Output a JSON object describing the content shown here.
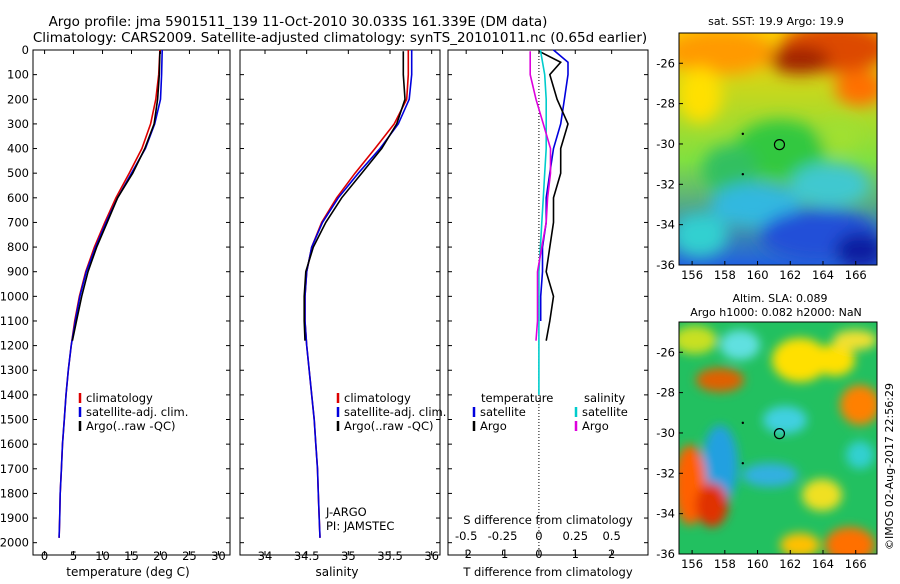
{
  "title": {
    "line1": "Argo profile: jma 5901511_139 11-Oct-2010 30.033S 161.339E (DM data)",
    "line2": "Climatology: CARS2009. Satellite-adjusted climatology: synTS_20101011.nc (0.65d earlier)"
  },
  "credit": "©IMOS 02-Aug-2017 22:56:29",
  "chart_data": [
    {
      "type": "line",
      "name": "temperature-profile",
      "xlabel": "temperature (deg C)",
      "xlim": [
        -2,
        32
      ],
      "xticks": [
        0,
        5,
        10,
        15,
        20,
        25,
        30
      ],
      "ylim": [
        0,
        2050
      ],
      "yticks": [
        0,
        100,
        200,
        300,
        400,
        500,
        600,
        700,
        800,
        900,
        1000,
        1100,
        1200,
        1300,
        1400,
        1500,
        1600,
        1700,
        1800,
        1900,
        2000
      ],
      "y_reversed": true,
      "legend": [
        "climatology",
        "satellite-adj. clim.",
        "Argo(..raw -QC)"
      ],
      "series": [
        {
          "name": "climatology",
          "color": "#dd0000",
          "x": [
            19.9,
            19.7,
            19.2,
            18.3,
            16.8,
            14.6,
            12.3,
            10.4,
            8.6,
            7.1,
            6.0,
            5.2,
            4.6,
            4.1,
            3.7,
            3.4,
            3.1,
            2.9,
            2.7,
            2.6,
            2.5
          ],
          "y": [
            0,
            100,
            200,
            300,
            400,
            500,
            600,
            700,
            800,
            900,
            1000,
            1100,
            1200,
            1300,
            1400,
            1500,
            1600,
            1700,
            1800,
            1900,
            1980
          ]
        },
        {
          "name": "satellite-adj. clim.",
          "color": "#0000dd",
          "x": [
            20.3,
            20.2,
            20.0,
            19.0,
            17.4,
            15.0,
            12.6,
            10.6,
            8.8,
            7.2,
            6.1,
            5.3,
            4.6,
            4.1,
            3.7,
            3.4,
            3.1,
            2.9,
            2.7,
            2.6,
            2.5
          ],
          "y": [
            0,
            100,
            200,
            300,
            400,
            500,
            600,
            700,
            800,
            900,
            1000,
            1100,
            1200,
            1300,
            1400,
            1500,
            1600,
            1700,
            1800,
            1900,
            1980
          ]
        },
        {
          "name": "Argo(..raw -QC)",
          "color": "#000000",
          "x": [
            19.9,
            19.8,
            19.5,
            18.9,
            17.3,
            15.2,
            12.6,
            10.8,
            9.0,
            7.5,
            6.4,
            5.5,
            4.8
          ],
          "y": [
            5,
            100,
            200,
            300,
            400,
            500,
            600,
            700,
            800,
            900,
            1000,
            1100,
            1180
          ]
        }
      ]
    },
    {
      "type": "line",
      "name": "salinity-profile",
      "xlabel": "salinity",
      "xlim": [
        33.7,
        36.1
      ],
      "xticks": [
        34,
        34.5,
        35,
        35.5,
        36
      ],
      "ylim": [
        0,
        2050
      ],
      "y_reversed": true,
      "legend": [
        "climatology",
        "satellite-adj. clim.",
        "Argo(..raw -QC)"
      ],
      "annotation": [
        "J-ARGO",
        "PI: JAMSTEC"
      ],
      "series": [
        {
          "name": "climatology",
          "color": "#dd0000",
          "x": [
            35.72,
            35.72,
            35.7,
            35.55,
            35.32,
            35.08,
            34.86,
            34.68,
            34.56,
            34.5,
            34.48,
            34.48,
            34.5,
            34.53,
            34.56,
            34.59,
            34.61,
            34.63,
            34.64,
            34.65,
            34.66
          ],
          "y": [
            0,
            100,
            200,
            300,
            400,
            500,
            600,
            700,
            800,
            900,
            1000,
            1100,
            1200,
            1300,
            1400,
            1500,
            1600,
            1700,
            1800,
            1900,
            1980
          ]
        },
        {
          "name": "satellite-adj. clim.",
          "color": "#0000dd",
          "x": [
            35.76,
            35.76,
            35.73,
            35.6,
            35.38,
            35.12,
            34.88,
            34.69,
            34.56,
            34.5,
            34.48,
            34.48,
            34.5,
            34.53,
            34.56,
            34.59,
            34.61,
            34.63,
            34.64,
            34.65,
            34.66
          ],
          "y": [
            0,
            100,
            200,
            300,
            400,
            500,
            600,
            700,
            800,
            900,
            1000,
            1100,
            1200,
            1300,
            1400,
            1500,
            1600,
            1700,
            1800,
            1900,
            1980
          ]
        },
        {
          "name": "Argo(..raw -QC)",
          "color": "#000000",
          "x": [
            35.66,
            35.66,
            35.68,
            35.58,
            35.4,
            35.16,
            34.92,
            34.73,
            34.58,
            34.49,
            34.47,
            34.47,
            34.48
          ],
          "y": [
            5,
            100,
            200,
            300,
            400,
            500,
            600,
            700,
            800,
            900,
            1000,
            1100,
            1180
          ]
        }
      ]
    },
    {
      "type": "line",
      "name": "difference-from-climatology",
      "xlabel_top": "S difference from climatology",
      "xlabel_bottom": "T difference from climatology",
      "xlim_T": [
        -2.5,
        3.0
      ],
      "xticks_T": [
        -2,
        -1,
        0,
        1,
        2
      ],
      "xlim_S": [
        -0.625,
        0.75
      ],
      "xticks_S": [
        "-0.5",
        "-0.25",
        "0",
        "0.25",
        "0.5"
      ],
      "ylim": [
        0,
        2050
      ],
      "y_reversed": true,
      "legend": {
        "temperature": [
          "satellite",
          "Argo"
        ],
        "salinity": [
          "satellite",
          "Argo"
        ]
      },
      "series": [
        {
          "name": "temperature satellite",
          "color": "#0000dd",
          "axis": "T",
          "x": [
            0.4,
            0.8,
            0.8,
            0.7,
            0.6,
            0.4,
            0.3,
            0.2,
            0.2,
            0.1,
            0.1,
            0.05,
            0.05
          ],
          "y": [
            0,
            50,
            100,
            200,
            300,
            400,
            500,
            600,
            700,
            800,
            900,
            1000,
            1100
          ]
        },
        {
          "name": "temperature Argo",
          "color": "#000000",
          "axis": "T",
          "x": [
            0.0,
            0.6,
            0.3,
            0.5,
            0.8,
            0.6,
            0.6,
            0.4,
            0.4,
            0.3,
            0.2,
            0.4,
            0.3,
            0.2
          ],
          "y": [
            5,
            50,
            100,
            200,
            300,
            400,
            500,
            600,
            700,
            800,
            900,
            1000,
            1100,
            1180
          ]
        },
        {
          "name": "salinity satellite",
          "color": "#00cccc",
          "axis": "S",
          "x": [
            0.01,
            0.04,
            0.05,
            0.05,
            0.05,
            0.04,
            0.03,
            0.02,
            0.01,
            0.0,
            0.0,
            0.0,
            0.0,
            0.0,
            0.0
          ],
          "y": [
            0,
            100,
            200,
            300,
            400,
            500,
            600,
            700,
            800,
            900,
            1000,
            1100,
            1200,
            1300,
            1400
          ]
        },
        {
          "name": "salinity Argo",
          "color": "#dd00dd",
          "axis": "S",
          "x": [
            -0.06,
            -0.06,
            -0.02,
            0.03,
            0.08,
            0.08,
            0.06,
            0.05,
            0.02,
            -0.01,
            -0.01,
            -0.01,
            -0.02
          ],
          "y": [
            5,
            100,
            200,
            300,
            400,
            500,
            600,
            700,
            800,
            900,
            1000,
            1100,
            1180
          ]
        }
      ]
    },
    {
      "type": "heatmap",
      "name": "sst-map",
      "title": "sat. SST: 19.9 Argo: 19.9",
      "xticks": [
        156,
        158,
        160,
        162,
        164,
        166
      ],
      "yticks": [
        -26,
        -28,
        -30,
        -32,
        -34,
        -36
      ],
      "xlim": [
        155.2,
        167.3
      ],
      "ylim": [
        -36,
        -24.5
      ],
      "argo_position": {
        "lon": 161.339,
        "lat": -30.033
      },
      "colormap": "jet"
    },
    {
      "type": "heatmap",
      "name": "sla-map",
      "title": [
        "Altim. SLA: 0.089",
        "Argo h1000: 0.082 h2000: NaN"
      ],
      "xticks": [
        156,
        158,
        160,
        162,
        164,
        166
      ],
      "yticks": [
        -26,
        -28,
        -30,
        -32,
        -34,
        -36
      ],
      "xlim": [
        155.2,
        167.3
      ],
      "ylim": [
        -36,
        -24.5
      ],
      "argo_position": {
        "lon": 161.339,
        "lat": -30.033
      },
      "colormap": "jet"
    }
  ]
}
